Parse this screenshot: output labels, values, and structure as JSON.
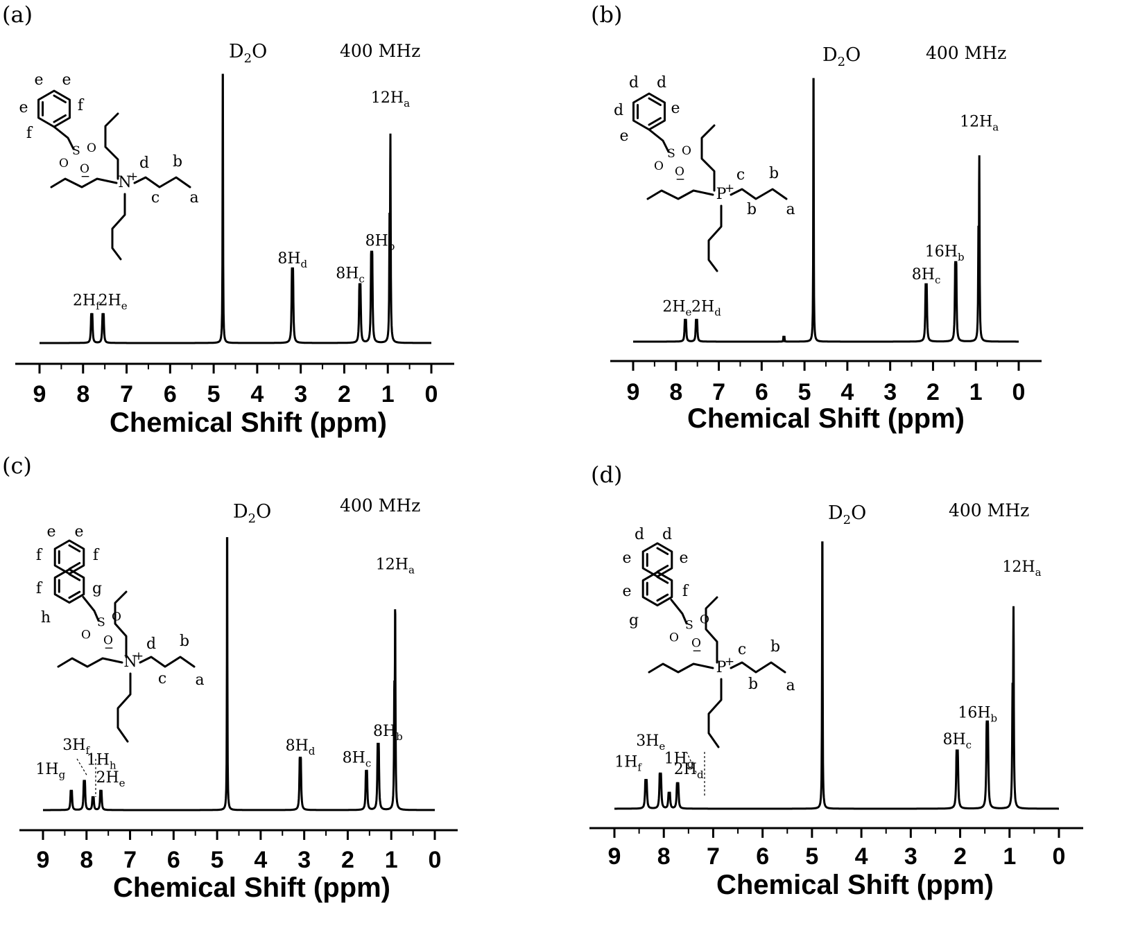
{
  "chart_data": [
    {
      "panel": "(a)",
      "type": "line",
      "xlabel": "Chemical Shift (ppm)",
      "x_ticks": [
        9,
        8,
        7,
        6,
        5,
        4,
        3,
        2,
        1,
        0
      ],
      "xlim": [
        9,
        0
      ],
      "x_reversed": true,
      "frequency": "400 MHz",
      "solvent_label": "D2O",
      "molecule_labels": [
        "e",
        "e",
        "e",
        "f",
        "f",
        "d",
        "b",
        "c",
        "a"
      ],
      "peaks": [
        {
          "ppm": 7.8,
          "height": 0.09,
          "label": "2H",
          "subscript": "f"
        },
        {
          "ppm": 7.54,
          "height": 0.09,
          "label": "2H",
          "subscript": "e"
        },
        {
          "ppm": 4.79,
          "height": 1.0,
          "label": "D2O"
        },
        {
          "ppm": 3.19,
          "height": 0.23,
          "label": "8H",
          "subscript": "d"
        },
        {
          "ppm": 1.64,
          "height": 0.18,
          "label": "8H",
          "subscript": "c"
        },
        {
          "ppm": 1.37,
          "height": 0.28,
          "label": "8H",
          "subscript": "b"
        },
        {
          "ppm": 0.94,
          "height": 0.77,
          "label": "12H",
          "subscript": "a"
        }
      ]
    },
    {
      "panel": "(b)",
      "type": "line",
      "xlabel": "Chemical Shift (ppm)",
      "x_ticks": [
        9,
        8,
        7,
        6,
        5,
        4,
        3,
        2,
        1,
        0
      ],
      "xlim": [
        9,
        0
      ],
      "x_reversed": true,
      "frequency": "400 MHz",
      "solvent_label": "D2O",
      "molecule_labels": [
        "d",
        "d",
        "d",
        "e",
        "e",
        "c",
        "b",
        "b",
        "a"
      ],
      "peaks": [
        {
          "ppm": 7.78,
          "height": 0.07,
          "label": "2H",
          "subscript": "e"
        },
        {
          "ppm": 7.52,
          "height": 0.07,
          "label": "2H",
          "subscript": "d"
        },
        {
          "ppm": 5.48,
          "height": 0.02
        },
        {
          "ppm": 4.79,
          "height": 1.0,
          "label": "D2O"
        },
        {
          "ppm": 2.16,
          "height": 0.18,
          "label": "8H",
          "subscript": "c"
        },
        {
          "ppm": 1.47,
          "height": 0.25,
          "label": "16H",
          "subscript": "b"
        },
        {
          "ppm": 0.92,
          "height": 0.7,
          "label": "12H",
          "subscript": "a"
        }
      ]
    },
    {
      "panel": "(c)",
      "type": "line",
      "xlabel": "Chemical Shift (ppm)",
      "x_ticks": [
        9,
        8,
        7,
        6,
        5,
        4,
        3,
        2,
        1,
        0
      ],
      "xlim": [
        9,
        0
      ],
      "x_reversed": true,
      "frequency": "400 MHz",
      "solvent_label": "D2O",
      "molecule_labels": [
        "e",
        "e",
        "f",
        "f",
        "f",
        "g",
        "h",
        "d",
        "b",
        "c",
        "a"
      ],
      "peaks": [
        {
          "ppm": 8.35,
          "height": 0.06,
          "label": "1H",
          "subscript": "g"
        },
        {
          "ppm": 8.05,
          "height": 0.09,
          "label": "3H",
          "subscript": "f"
        },
        {
          "ppm": 7.85,
          "height": 0.04,
          "label": "1H",
          "subscript": "h"
        },
        {
          "ppm": 7.67,
          "height": 0.06,
          "label": "2H",
          "subscript": "e"
        },
        {
          "ppm": 4.77,
          "height": 1.0,
          "label": "D2O"
        },
        {
          "ppm": 3.09,
          "height": 0.16,
          "label": "8H",
          "subscript": "d"
        },
        {
          "ppm": 1.57,
          "height": 0.12,
          "label": "8H",
          "subscript": "c"
        },
        {
          "ppm": 1.3,
          "height": 0.2,
          "label": "8H",
          "subscript": "b"
        },
        {
          "ppm": 0.91,
          "height": 0.76,
          "label": "12H",
          "subscript": "a"
        }
      ]
    },
    {
      "panel": "(d)",
      "type": "line",
      "xlabel": "Chemical Shift (ppm)",
      "x_ticks": [
        9,
        8,
        7,
        6,
        5,
        4,
        3,
        2,
        1,
        0
      ],
      "xlim": [
        9,
        0
      ],
      "x_reversed": true,
      "frequency": "400 MHz",
      "solvent_label": "D2O",
      "molecule_labels": [
        "d",
        "d",
        "e",
        "e",
        "e",
        "f",
        "g",
        "c",
        "b",
        "b",
        "a"
      ],
      "peaks": [
        {
          "ppm": 8.36,
          "height": 0.09,
          "label": "1H",
          "subscript": "f"
        },
        {
          "ppm": 8.07,
          "height": 0.11,
          "label": "3H",
          "subscript": "e"
        },
        {
          "ppm": 7.89,
          "height": 0.05,
          "label": "1H",
          "subscript": "g"
        },
        {
          "ppm": 7.72,
          "height": 0.08,
          "label": "2H",
          "subscript": "d"
        },
        {
          "ppm": 4.79,
          "height": 1.0,
          "label": "D2O"
        },
        {
          "ppm": 2.06,
          "height": 0.18,
          "label": "8H",
          "subscript": "c"
        },
        {
          "ppm": 1.45,
          "height": 0.27,
          "label": "16H",
          "subscript": "b"
        },
        {
          "ppm": 0.92,
          "height": 0.75,
          "label": "12H",
          "subscript": "a"
        }
      ]
    }
  ]
}
